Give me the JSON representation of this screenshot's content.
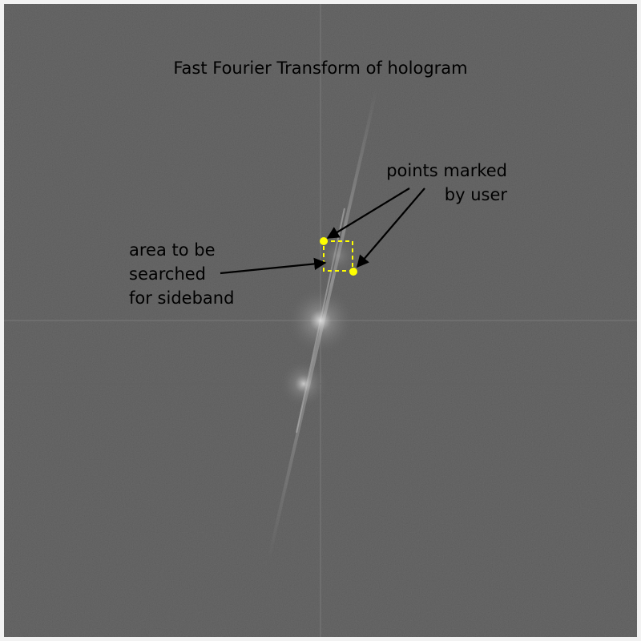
{
  "figure": {
    "title": "Fast Fourier Transform of hologram",
    "annotations": {
      "points_marked": "points marked\n  by user",
      "search_area": "area to be\nsearched\nfor sideband"
    },
    "colors": {
      "panel_background": "#555555",
      "page_background": "#f2f2f2",
      "marker": "#ffff00",
      "search_box_outline": "#ffff00",
      "arrow": "#000000",
      "spectrum_highlight": "#d8d8d8"
    },
    "icons": [
      "marker-point-icon",
      "arrow-icon"
    ]
  }
}
